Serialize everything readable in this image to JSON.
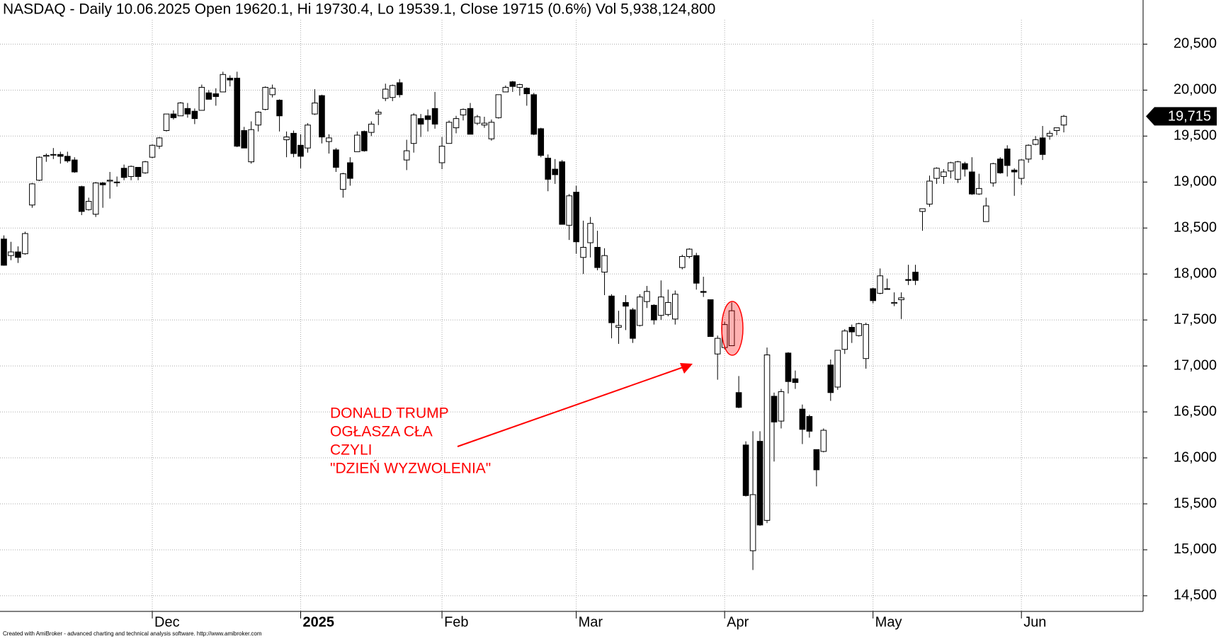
{
  "chart_data": {
    "type": "candlestick",
    "title": "NASDAQ - Daily 10.06.2025 Open 19620.1, Hi 19730.4, Lo 19539.1, Close 19715 (0.6%) Vol 5,938,124,800",
    "footer": "Created with AmiBroker - advanced charting and technical analysis software. http://www.amibroker.com",
    "annotation": [
      "DONALD TRUMP",
      "OGŁASZA CŁA",
      "CZYLI",
      "\"DZIEŃ WYZWOLENIA\""
    ],
    "annotation_color": "#ff0000",
    "last_price_label": {
      "value": 19715,
      "label": "19,715"
    },
    "categories": [
      null,
      null,
      null,
      null,
      null,
      null,
      null,
      null,
      null,
      null,
      null,
      null,
      null,
      null,
      null,
      null,
      null,
      null,
      null,
      null,
      null,
      "Dec",
      null,
      null,
      null,
      null,
      null,
      null,
      null,
      null,
      null,
      null,
      null,
      null,
      null,
      null,
      null,
      null,
      null,
      null,
      null,
      null,
      "2025",
      null,
      null,
      null,
      null,
      null,
      null,
      null,
      null,
      null,
      null,
      null,
      null,
      null,
      null,
      null,
      null,
      null,
      null,
      null,
      "Feb",
      null,
      null,
      null,
      null,
      null,
      null,
      null,
      null,
      null,
      null,
      null,
      null,
      null,
      null,
      null,
      null,
      null,
      null,
      "Mar",
      null,
      null,
      null,
      null,
      null,
      null,
      null,
      null,
      null,
      null,
      null,
      null,
      null,
      null,
      null,
      null,
      null,
      null,
      null,
      null,
      "Apr",
      null,
      null,
      null,
      null,
      null,
      null,
      null,
      null,
      null,
      null,
      null,
      null,
      null,
      null,
      null,
      null,
      null,
      null,
      null,
      null,
      "May",
      null,
      null,
      null,
      null,
      null,
      null,
      null,
      null,
      null,
      null,
      null,
      null,
      null,
      null,
      null,
      null,
      null,
      null,
      null,
      null,
      "Jun",
      null,
      null,
      null,
      null,
      null,
      null
    ],
    "open": [
      18380,
      18200,
      18240,
      18220,
      18750,
      19020,
      19280,
      19300,
      19300,
      19280,
      19240,
      18950,
      18700,
      18650,
      18990,
      19010,
      19000,
      19150,
      19060,
      19160,
      19100,
      19270,
      19390,
      19560,
      19740,
      19720,
      19800,
      19770,
      19780,
      19970,
      19960,
      19980,
      20130,
      20130,
      19560,
      19220,
      19620,
      19790,
      19950,
      19890,
      19460,
      19530,
      19400,
      19370,
      19740,
      19940,
      19440,
      19350,
      18920,
      19210,
      19330,
      19550,
      19540,
      19740,
      19910,
      19920,
      20080,
      19240,
      19420,
      19690,
      19720,
      19800,
      19210,
      19420,
      19590,
      19730,
      19800,
      19640,
      19620,
      19470,
      19700,
      19980,
      20090,
      20030,
      20020,
      19950,
      19580,
      19260,
      19140,
      19220,
      18530,
      18890,
      18180,
      18340,
      18290,
      18020,
      17760,
      17420,
      17690,
      17610,
      17440,
      17700,
      17660,
      17550,
      17560,
      17510,
      18070,
      18190,
      18200,
      17810,
      17720,
      17130,
      17200,
      17220,
      16710,
      16140,
      14990,
      16180,
      15320,
      16670,
      16400,
      17140,
      16860,
      16530,
      16450,
      16090,
      16070,
      17010,
      16770,
      17180,
      17420,
      17330,
      17080,
      17840,
      17790,
      17840,
      17680,
      17720,
      17940,
      18020,
      18680,
      18760,
      19040,
      19060,
      19120,
      19030,
      19200,
      19110,
      18870,
      18570,
      18990,
      19250,
      19360,
      19130,
      19040,
      19250,
      19410,
      19480,
      19500,
      19560,
      19620
    ],
    "high": [
      18420,
      18350,
      18300,
      18460,
      18990,
      19280,
      19310,
      19370,
      19330,
      19330,
      19270,
      18960,
      18830,
      19000,
      19000,
      19110,
      19060,
      19190,
      19180,
      19160,
      19230,
      19410,
      19490,
      19740,
      19780,
      19870,
      19860,
      19800,
      20060,
      20000,
      20020,
      20200,
      20160,
      20200,
      19600,
      19660,
      19770,
      20040,
      20060,
      19900,
      19550,
      19560,
      19520,
      19640,
      20010,
      19950,
      19520,
      19370,
      19100,
      19270,
      19550,
      19560,
      19660,
      19790,
      20070,
      20060,
      20120,
      19460,
      19750,
      19740,
      19790,
      19980,
      19490,
      19670,
      19720,
      19800,
      19860,
      19730,
      19710,
      19680,
      19950,
      20050,
      20100,
      20070,
      20030,
      19970,
      19590,
      19300,
      19250,
      19240,
      18870,
      18960,
      18580,
      18620,
      18470,
      18280,
      17780,
      17600,
      17770,
      17630,
      17780,
      17870,
      17670,
      17930,
      17830,
      17820,
      18210,
      18280,
      18230,
      17970,
      17720,
      17330,
      17480,
      17690,
      16890,
      16180,
      16290,
      16290,
      17200,
      16710,
      16750,
      17150,
      16950,
      16580,
      16470,
      16090,
      16320,
      17070,
      17170,
      17400,
      17450,
      17470,
      17470,
      17850,
      18060,
      17950,
      17800,
      17800,
      18100,
      18100,
      18710,
      19070,
      19160,
      19140,
      19220,
      19230,
      19220,
      19270,
      19090,
      18830,
      19210,
      19270,
      19400,
      19150,
      19250,
      19410,
      19500,
      19610,
      19560,
      19590,
      19730
    ],
    "low": [
      18090,
      18150,
      18120,
      18210,
      18720,
      19010,
      19220,
      19250,
      19200,
      19210,
      19100,
      18640,
      18690,
      18620,
      18720,
      18820,
      18950,
      19020,
      19020,
      19020,
      19090,
      19260,
      19360,
      19550,
      19680,
      19720,
      19700,
      19630,
      19780,
      19900,
      19830,
      19980,
      20040,
      19380,
      19370,
      19200,
      19550,
      19780,
      19920,
      19550,
      19270,
      19270,
      19150,
      19320,
      19730,
      19420,
      19310,
      19110,
      18830,
      18960,
      19330,
      19330,
      19500,
      19620,
      19880,
      19880,
      19920,
      19130,
      19320,
      19490,
      19550,
      19580,
      19140,
      19420,
      19530,
      19670,
      19520,
      19620,
      19590,
      19450,
      19690,
      19980,
      19980,
      19940,
      19830,
      19510,
      19270,
      18900,
      18980,
      18540,
      18370,
      18220,
      18000,
      18180,
      18040,
      17770,
      17300,
      17240,
      17390,
      17250,
      17430,
      17630,
      17450,
      17500,
      17540,
      17450,
      18050,
      18170,
      17830,
      17750,
      17320,
      16850,
      17180,
      17220,
      16540,
      15580,
      14780,
      15260,
      15290,
      15960,
      16320,
      16700,
      16750,
      16150,
      16220,
      15690,
      16060,
      16620,
      16740,
      17130,
      17250,
      17320,
      16970,
      17680,
      17780,
      17840,
      17650,
      17510,
      17880,
      17880,
      18470,
      18730,
      18980,
      18980,
      19040,
      18990,
      19060,
      18860,
      18860,
      18570,
      18950,
      19090,
      19060,
      18850,
      18970,
      19210,
      19400,
      19240,
      19460,
      19510,
      19540
    ],
    "close": [
      18095,
      18240,
      18180,
      18440,
      18980,
      19270,
      19290,
      19300,
      19280,
      19230,
      19110,
      18680,
      18790,
      18990,
      18970,
      19020,
      19000,
      19050,
      19170,
      19060,
      19220,
      19400,
      19480,
      19740,
      19700,
      19860,
      19740,
      19690,
      20030,
      19900,
      19930,
      20170,
      20110,
      19390,
      19370,
      19570,
      19760,
      20030,
      20020,
      19720,
      19490,
      19310,
      19280,
      19620,
      19860,
      19490,
      19480,
      19160,
      19090,
      19040,
      19510,
      19340,
      19630,
      19760,
      20010,
      20050,
      19950,
      19340,
      19730,
      19630,
      19680,
      19630,
      19390,
      19650,
      19690,
      19790,
      19520,
      19710,
      19640,
      19650,
      19950,
      20030,
      20040,
      20060,
      19960,
      19520,
      19290,
      19030,
      19080,
      18540,
      18850,
      18350,
      18290,
      18550,
      18070,
      18200,
      17470,
      17440,
      17650,
      17300,
      17750,
      17810,
      17500,
      17750,
      17690,
      17780,
      18190,
      18270,
      17900,
      17800,
      17320,
      17300,
      17450,
      17600,
      16550,
      15590,
      15600,
      15270,
      17120,
      16390,
      16720,
      16830,
      16820,
      16310,
      16290,
      15870,
      16300,
      16710,
      17170,
      17380,
      17370,
      17460,
      17450,
      17710,
      17980,
      17840,
      17690,
      17740,
      17930,
      17930,
      18710,
      19010,
      19150,
      19110,
      19210,
      19220,
      19140,
      18870,
      18930,
      18740,
      19200,
      19100,
      19180,
      19110,
      19240,
      19400,
      19460,
      19300,
      19530,
      19590,
      19715
    ],
    "ylim": [
      14330,
      20980
    ],
    "yticks": [
      {
        "value": 14500,
        "label": "14,500"
      },
      {
        "value": 15000,
        "label": "15,000"
      },
      {
        "value": 15500,
        "label": "15,500"
      },
      {
        "value": 16000,
        "label": "16,000"
      },
      {
        "value": 16500,
        "label": "16,500"
      },
      {
        "value": 17000,
        "label": "17,000"
      },
      {
        "value": 17500,
        "label": "17,500"
      },
      {
        "value": 18000,
        "label": "18,000"
      },
      {
        "value": 18500,
        "label": "18,500"
      },
      {
        "value": 19000,
        "label": "19,000"
      },
      {
        "value": 19500,
        "label": "19,500"
      },
      {
        "value": 20000,
        "label": "20,000"
      },
      {
        "value": 20500,
        "label": "20,500"
      }
    ],
    "grid": true
  }
}
